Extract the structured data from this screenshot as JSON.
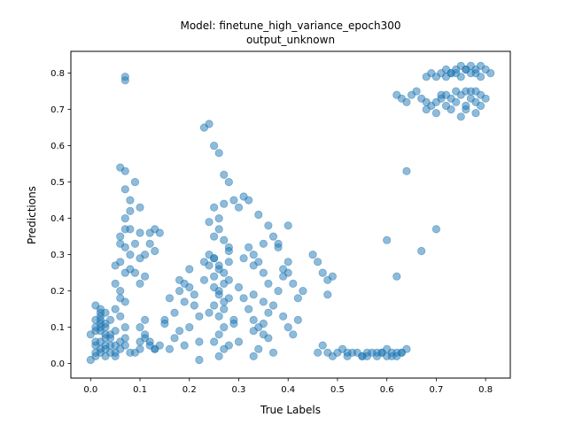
{
  "chart_data": {
    "type": "scatter",
    "title": "Model: finetune_high_variance_epoch300\noutput_unknown",
    "title_lines": [
      "Model: finetune_high_variance_epoch300",
      "output_unknown"
    ],
    "xlabel": "True Labels",
    "ylabel": "Predictions",
    "xlim": [
      -0.04,
      0.85
    ],
    "ylim": [
      -0.04,
      0.86
    ],
    "xticks": [
      0.0,
      0.1,
      0.2,
      0.3,
      0.4,
      0.5,
      0.6,
      0.7,
      0.8
    ],
    "xtick_labels": [
      "0.0",
      "0.1",
      "0.2",
      "0.3",
      "0.4",
      "0.5",
      "0.6",
      "0.7",
      "0.8"
    ],
    "yticks": [
      0.0,
      0.1,
      0.2,
      0.3,
      0.4,
      0.5,
      0.6,
      0.7,
      0.8
    ],
    "ytick_labels": [
      "0.0",
      "0.1",
      "0.2",
      "0.3",
      "0.4",
      "0.5",
      "0.6",
      "0.7",
      "0.8"
    ],
    "grid": false,
    "legend": "none",
    "marker_color": "#1f77b4",
    "marker_alpha": 0.5,
    "series": [
      {
        "x": [
          0.0,
          0.01,
          0.02,
          0.03,
          0.01,
          0.02,
          0.03,
          0.04,
          0.0,
          0.01,
          0.02,
          0.05,
          0.01,
          0.02,
          0.03,
          0.04,
          0.02,
          0.01,
          0.03,
          0.05,
          0.02,
          0.01,
          0.04,
          0.03,
          0.06,
          0.02,
          0.01,
          0.03,
          0.05,
          0.02,
          0.04,
          0.01,
          0.03,
          0.02,
          0.06,
          0.05,
          0.04,
          0.07,
          0.08,
          0.07,
          0.03,
          0.02,
          0.05,
          0.06,
          0.05,
          0.07,
          0.06,
          0.08,
          0.07,
          0.06,
          0.05,
          0.08,
          0.07,
          0.06,
          0.08,
          0.07,
          0.06,
          0.07,
          0.08,
          0.07,
          0.06,
          0.07,
          0.08,
          0.06,
          0.07,
          0.09,
          0.1,
          0.1,
          0.09,
          0.1,
          0.11,
          0.09,
          0.1,
          0.11,
          0.12,
          0.13,
          0.14,
          0.12,
          0.13,
          0.07,
          0.07,
          0.1,
          0.11,
          0.12,
          0.1,
          0.09,
          0.11,
          0.13,
          0.12,
          0.1,
          0.11,
          0.14,
          0.13,
          0.15,
          0.16,
          0.17,
          0.18,
          0.19,
          0.2,
          0.21,
          0.22,
          0.18,
          0.19,
          0.16,
          0.2,
          0.17,
          0.15,
          0.2,
          0.22,
          0.18,
          0.21,
          0.19,
          0.23,
          0.23,
          0.24,
          0.25,
          0.26,
          0.27,
          0.28,
          0.29,
          0.24,
          0.25,
          0.26,
          0.27,
          0.28,
          0.25,
          0.26,
          0.27,
          0.24,
          0.28,
          0.26,
          0.25,
          0.27,
          0.26,
          0.28,
          0.25,
          0.24,
          0.29,
          0.27,
          0.26,
          0.25,
          0.27,
          0.26,
          0.28,
          0.24,
          0.25,
          0.26,
          0.27,
          0.23,
          0.29,
          0.22,
          0.25,
          0.26,
          0.27,
          0.25,
          0.28,
          0.26,
          0.27,
          0.3,
          0.31,
          0.32,
          0.33,
          0.34,
          0.35,
          0.36,
          0.37,
          0.38,
          0.39,
          0.32,
          0.33,
          0.34,
          0.35,
          0.36,
          0.31,
          0.33,
          0.35,
          0.37,
          0.32,
          0.34,
          0.36,
          0.38,
          0.33,
          0.35,
          0.3,
          0.34,
          0.37,
          0.4,
          0.39,
          0.31,
          0.33,
          0.35,
          0.36,
          0.3,
          0.33,
          0.28,
          0.4,
          0.41,
          0.42,
          0.43,
          0.4,
          0.41,
          0.42,
          0.38,
          0.39,
          0.4,
          0.45,
          0.46,
          0.47,
          0.48,
          0.49,
          0.46,
          0.48,
          0.47,
          0.48,
          0.49,
          0.5,
          0.51,
          0.52,
          0.53,
          0.54,
          0.55,
          0.56,
          0.57,
          0.58,
          0.59,
          0.6,
          0.61,
          0.62,
          0.63,
          0.64,
          0.52,
          0.55,
          0.58,
          0.6,
          0.62,
          0.56,
          0.59,
          0.61,
          0.63,
          0.6,
          0.62,
          0.64,
          0.67,
          0.7,
          0.62,
          0.63,
          0.64,
          0.65,
          0.66,
          0.67,
          0.68,
          0.69,
          0.7,
          0.71,
          0.72,
          0.73,
          0.74,
          0.75,
          0.76,
          0.77,
          0.78,
          0.79,
          0.8,
          0.68,
          0.7,
          0.72,
          0.74,
          0.76,
          0.78,
          0.75,
          0.77,
          0.79,
          0.73,
          0.71,
          0.78,
          0.76,
          0.68,
          0.69,
          0.7,
          0.71,
          0.72,
          0.73,
          0.74,
          0.75,
          0.76,
          0.77,
          0.78,
          0.79,
          0.8,
          0.81,
          0.72,
          0.74,
          0.76,
          0.78,
          0.75,
          0.77,
          0.79,
          0.73
        ],
        "y": [
          0.01,
          0.02,
          0.03,
          0.02,
          0.05,
          0.06,
          0.04,
          0.03,
          0.08,
          0.09,
          0.1,
          0.05,
          0.12,
          0.13,
          0.11,
          0.07,
          0.15,
          0.16,
          0.14,
          0.09,
          0.04,
          0.06,
          0.05,
          0.08,
          0.06,
          0.11,
          0.1,
          0.07,
          0.03,
          0.14,
          0.12,
          0.03,
          0.05,
          0.09,
          0.04,
          0.02,
          0.08,
          0.05,
          0.03,
          0.07,
          0.1,
          0.12,
          0.15,
          0.18,
          0.22,
          0.25,
          0.28,
          0.3,
          0.32,
          0.35,
          0.27,
          0.37,
          0.4,
          0.33,
          0.45,
          0.48,
          0.2,
          0.17,
          0.26,
          0.53,
          0.54,
          0.37,
          0.42,
          0.13,
          0.1,
          0.33,
          0.36,
          0.43,
          0.5,
          0.29,
          0.3,
          0.25,
          0.22,
          0.24,
          0.36,
          0.37,
          0.36,
          0.33,
          0.31,
          0.79,
          0.78,
          0.06,
          0.07,
          0.05,
          0.04,
          0.03,
          0.08,
          0.04,
          0.06,
          0.1,
          0.12,
          0.05,
          0.04,
          0.12,
          0.18,
          0.14,
          0.2,
          0.22,
          0.1,
          0.16,
          0.13,
          0.09,
          0.05,
          0.04,
          0.21,
          0.07,
          0.11,
          0.26,
          0.06,
          0.23,
          0.19,
          0.17,
          0.28,
          0.65,
          0.66,
          0.6,
          0.58,
          0.52,
          0.5,
          0.45,
          0.39,
          0.43,
          0.37,
          0.34,
          0.32,
          0.29,
          0.27,
          0.25,
          0.3,
          0.28,
          0.26,
          0.24,
          0.22,
          0.2,
          0.18,
          0.16,
          0.14,
          0.12,
          0.1,
          0.08,
          0.06,
          0.04,
          0.02,
          0.31,
          0.27,
          0.21,
          0.19,
          0.15,
          0.23,
          0.11,
          0.01,
          0.35,
          0.4,
          0.44,
          0.29,
          0.23,
          0.13,
          0.17,
          0.21,
          0.18,
          0.15,
          0.12,
          0.1,
          0.08,
          0.14,
          0.16,
          0.2,
          0.13,
          0.32,
          0.3,
          0.28,
          0.25,
          0.22,
          0.29,
          0.27,
          0.33,
          0.35,
          0.45,
          0.41,
          0.38,
          0.32,
          0.09,
          0.11,
          0.06,
          0.04,
          0.03,
          0.38,
          0.26,
          0.46,
          0.19,
          0.17,
          0.07,
          0.43,
          0.02,
          0.05,
          0.28,
          0.22,
          0.18,
          0.2,
          0.1,
          0.08,
          0.12,
          0.33,
          0.24,
          0.25,
          0.3,
          0.28,
          0.25,
          0.23,
          0.24,
          0.03,
          0.19,
          0.05,
          0.03,
          0.02,
          0.03,
          0.04,
          0.02,
          0.03,
          0.03,
          0.02,
          0.03,
          0.03,
          0.02,
          0.03,
          0.04,
          0.03,
          0.02,
          0.03,
          0.04,
          0.03,
          0.02,
          0.03,
          0.02,
          0.03,
          0.02,
          0.03,
          0.02,
          0.03,
          0.34,
          0.24,
          0.53,
          0.31,
          0.37,
          0.74,
          0.73,
          0.72,
          0.74,
          0.75,
          0.73,
          0.72,
          0.71,
          0.72,
          0.73,
          0.74,
          0.73,
          0.72,
          0.74,
          0.75,
          0.73,
          0.72,
          0.74,
          0.73,
          0.7,
          0.69,
          0.71,
          0.75,
          0.7,
          0.69,
          0.68,
          0.75,
          0.71,
          0.7,
          0.74,
          0.75,
          0.71,
          0.79,
          0.8,
          0.79,
          0.8,
          0.81,
          0.8,
          0.81,
          0.82,
          0.81,
          0.8,
          0.81,
          0.82,
          0.81,
          0.8,
          0.79,
          0.8,
          0.81,
          0.8,
          0.79,
          0.82,
          0.79,
          0.8
        ]
      }
    ]
  }
}
